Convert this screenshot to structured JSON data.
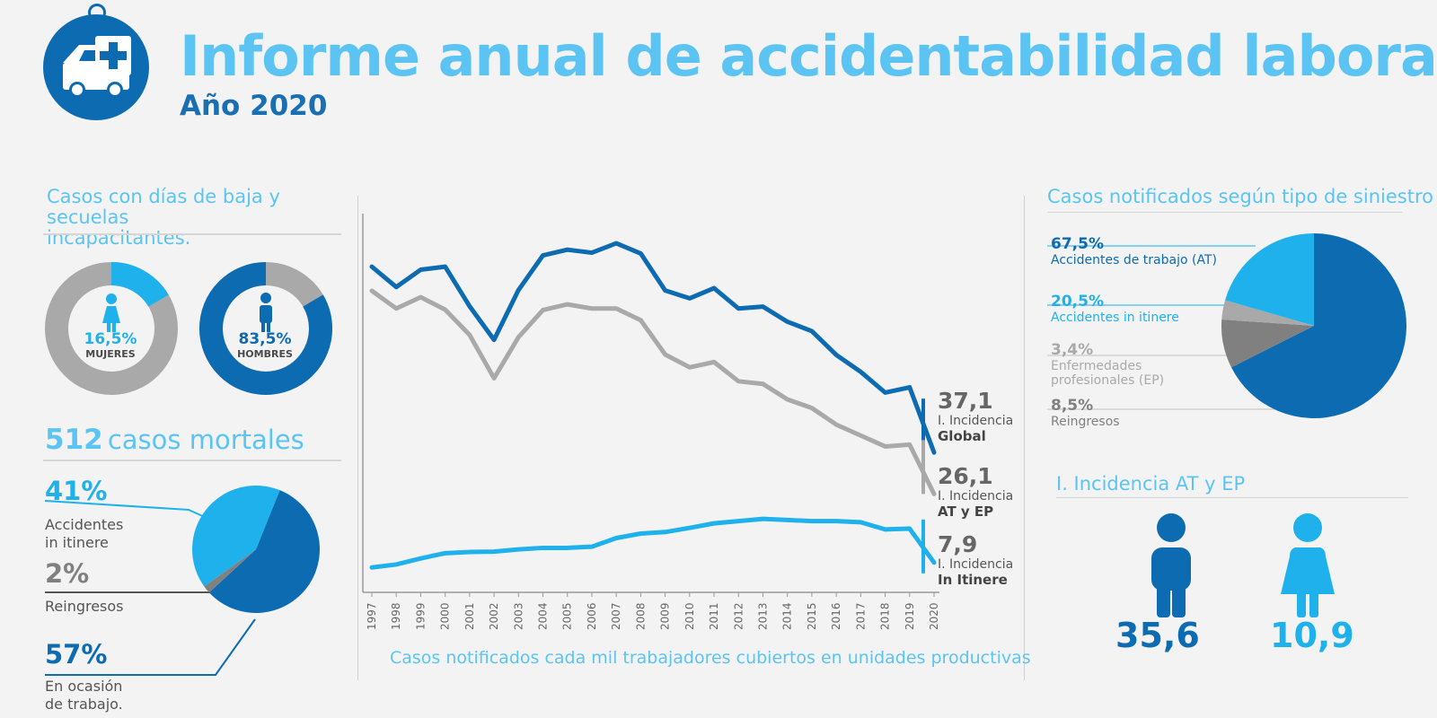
{
  "header": {
    "title": "Informe anual de accidentabilidad laboral",
    "subtitle": "Año 2020",
    "logo_icon": "ambulance-icon"
  },
  "colors": {
    "dark_blue": "#0d6bb2",
    "light_blue": "#1eb1ec",
    "title_blue": "#5cc4f2",
    "gray": "#a9a9a9",
    "dark_gray": "#808080"
  },
  "left": {
    "days_title_line1": "Casos con días de baja y secuelas",
    "days_title_line2": "incapacitantes.",
    "women": {
      "pct": "16,5%",
      "label": "MUJERES",
      "value": 16.5,
      "icon": "woman-icon"
    },
    "men": {
      "pct": "83,5%",
      "label": "HOMBRES",
      "value": 83.5,
      "icon": "man-icon"
    },
    "mortal_count": "512",
    "mortal_label": "casos mortales",
    "items": [
      {
        "pct": "41%",
        "label_line1": "Accidentes",
        "label_line2": "in itinere",
        "value": 41
      },
      {
        "pct": "2%",
        "label_line1": "Reingresos",
        "label_line2": "",
        "value": 2
      },
      {
        "pct": "57%",
        "label_line1": "En ocasión",
        "label_line2": "de trabajo.",
        "value": 57
      }
    ]
  },
  "chart_data": [
    {
      "type": "line",
      "title": "",
      "caption": "Casos notificados cada mil trabajadores cubiertos en unidades productivas",
      "x": [
        "1997",
        "1998",
        "1999",
        "2000",
        "2001",
        "2002",
        "2003",
        "2004",
        "2005",
        "2006",
        "2007",
        "2008",
        "2009",
        "2010",
        "2011",
        "2012",
        "2013",
        "2014",
        "2015",
        "2016",
        "2017",
        "2018",
        "2019",
        "2020"
      ],
      "ylim": [
        0,
        100
      ],
      "series": [
        {
          "name": "Global",
          "color": "#0d6bb2",
          "values": [
            86.4,
            81.0,
            85.6,
            86.4,
            75.9,
            67.0,
            80.2,
            89.4,
            90.9,
            90.1,
            92.6,
            89.9,
            80.1,
            78.0,
            80.7,
            75.3,
            75.8,
            71.8,
            69.3,
            63.0,
            58.5,
            53.0,
            54.4,
            37.1
          ]
        },
        {
          "name": "AT y EP",
          "color": "#a9a9a9",
          "values": [
            80.0,
            75.3,
            78.3,
            75.0,
            68.3,
            56.8,
            67.7,
            74.9,
            76.4,
            75.3,
            75.3,
            72.2,
            63.1,
            59.7,
            61.1,
            56.0,
            55.3,
            51.2,
            48.9,
            44.5,
            41.6,
            38.7,
            39.2,
            26.1
          ]
        },
        {
          "name": "In Itinere",
          "color": "#1eb1ec",
          "values": [
            6.6,
            7.4,
            9.0,
            10.4,
            10.7,
            10.8,
            11.4,
            11.8,
            11.8,
            12.1,
            14.4,
            15.6,
            16.0,
            17.1,
            18.3,
            18.9,
            19.5,
            19.2,
            18.9,
            18.9,
            18.6,
            16.7,
            16.9,
            7.9
          ]
        }
      ],
      "end_labels": [
        {
          "value": "37,1",
          "line1": "I. Incidencia",
          "line2": "Global",
          "color": "#0d6bb2"
        },
        {
          "value": "26,1",
          "line1": "I. Incidencia",
          "line2": "AT y EP",
          "color": "#a9a9a9"
        },
        {
          "value": "7,9",
          "line1": "I. Incidencia",
          "line2": "In Itinere",
          "color": "#1eb1ec"
        }
      ]
    },
    {
      "type": "pie",
      "title": "",
      "slices": [
        {
          "label": "Accidentes in itinere",
          "value": 41,
          "color": "#1eb1ec"
        },
        {
          "label": "Reingresos",
          "value": 2,
          "color": "#808080"
        },
        {
          "label": "En ocasión de trabajo.",
          "value": 57,
          "color": "#0d6bb2"
        }
      ]
    },
    {
      "type": "pie",
      "title": "Casos notificados según tipo de siniestro",
      "slices": [
        {
          "label": "Accidentes de trabajo (AT)",
          "value": 67.5,
          "color": "#0d6bb2"
        },
        {
          "label": "Accidentes in itinere",
          "value": 20.5,
          "color": "#1eb1ec"
        },
        {
          "label": "Enfermedades profesionales (EP)",
          "value": 3.4,
          "color": "#a9a9a9"
        },
        {
          "label": "Reingresos",
          "value": 8.5,
          "color": "#808080"
        }
      ]
    }
  ],
  "right": {
    "types_title": "Casos notificados según tipo de siniestro",
    "items": [
      {
        "pct": "67,5%",
        "line1": "Accidentes de trabajo (AT)",
        "line2": ""
      },
      {
        "pct": "20,5%",
        "line1": "Accidentes in itinere",
        "line2": ""
      },
      {
        "pct": "3,4%",
        "line1": "Enfermedades",
        "line2": "profesionales (EP)"
      },
      {
        "pct": "8,5%",
        "line1": "Reingresos",
        "line2": ""
      }
    ],
    "incidence_title": "I. Incidencia AT y EP",
    "men_value": "35,6",
    "women_value": "10,9",
    "men_icon": "man-icon",
    "women_icon": "woman-icon"
  }
}
